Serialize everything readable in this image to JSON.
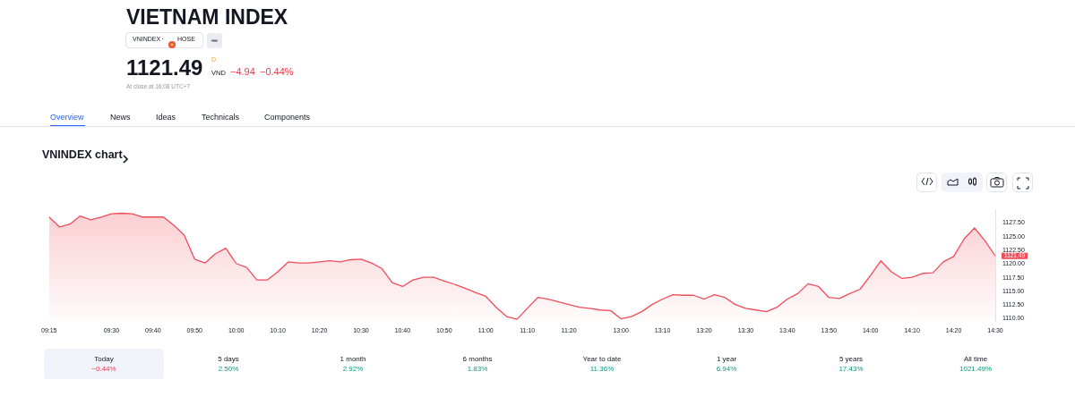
{
  "chart_data": {
    "type": "area",
    "title": "VNINDEX chart",
    "annotations": [
      "VIETNAM INDEX",
      "VNINDEX",
      "HOSE",
      "1121.49",
      "D",
      "VND",
      "−4.94",
      "−0.44%",
      "At close at 16:08 UTC+7",
      "Overview",
      "News",
      "Ideas",
      "Technicals",
      "Components",
      "Today",
      "−0.44%",
      "5 days",
      "2.50%",
      "1 month",
      "2.92%",
      "6 months",
      "1.83%",
      "Year to date",
      "11.36%",
      "1 year",
      "6.94%",
      "5 years",
      "17.43%",
      "All time",
      "1021.49%",
      "·",
      {
        "text": "1121.49",
        "x": "14:30",
        "y": 1121.49
      }
    ],
    "categories": [
      "09:15",
      null,
      null,
      null,
      null,
      null,
      "09:30",
      null,
      null,
      null,
      "09:40",
      null,
      null,
      null,
      "09:50",
      null,
      null,
      null,
      "10:00",
      null,
      null,
      null,
      "10:10",
      null,
      null,
      null,
      "10:20",
      null,
      null,
      null,
      "10:30",
      null,
      null,
      null,
      "10:40",
      null,
      null,
      null,
      "10:50",
      null,
      null,
      null,
      "11:00",
      null,
      null,
      null,
      "11:10",
      null,
      null,
      null,
      "11:20",
      null,
      null,
      null,
      null,
      "13:00",
      null,
      null,
      null,
      "13:10",
      null,
      null,
      null,
      "13:20",
      null,
      null,
      null,
      "13:30",
      null,
      null,
      null,
      "13:40",
      null,
      null,
      null,
      "13:50",
      null,
      null,
      null,
      "14:00",
      null,
      null,
      null,
      "14:10",
      null,
      null,
      null,
      "14:20",
      null,
      null,
      null,
      "14:30"
    ],
    "series": [
      {
        "color": "#f04d5a",
        "values": [
          1128.6,
          1126.8,
          1127.3,
          1128.8,
          1128.1,
          1128.6,
          1129.2,
          1129.3,
          1129.2,
          1128.6,
          1128.6,
          1128.6,
          1127.1,
          1125.3,
          1120.9,
          1120.2,
          1121.9,
          1122.9,
          1120.1,
          1119.4,
          1117.1,
          1117.1,
          1118.6,
          1120.4,
          1120.2,
          1120.2,
          1120.4,
          1120.6,
          1120.4,
          1120.8,
          1120.9,
          1120.2,
          1119.2,
          1116.6,
          1115.9,
          1117.1,
          1117.6,
          1117.6,
          1116.9,
          1116.3,
          1115.6,
          1114.8,
          1114.1,
          1112.1,
          1110.4,
          1109.9,
          1111.9,
          1113.9,
          1113.6,
          1113.1,
          1112.6,
          1112.1,
          1111.9,
          1111.6,
          1111.5,
          1110.0,
          1110.4,
          1111.3,
          1112.6,
          1113.6,
          1114.4,
          1114.3,
          1114.3,
          1113.6,
          1114.4,
          1113.9,
          1112.6,
          1111.9,
          1111.6,
          1111.3,
          1112.1,
          1113.6,
          1114.6,
          1116.4,
          1115.9,
          1113.9,
          1113.7,
          1114.6,
          1115.4,
          1117.9,
          1120.6,
          1118.6,
          1117.4,
          1117.6,
          1118.3,
          1118.4,
          1120.4,
          1121.4,
          1124.6,
          1126.6,
          1124.3,
          1121.49
        ]
      }
    ],
    "ylim": [
      1109.5,
      1130
    ],
    "yticks": [
      {
        "value": 1110,
        "label": "1110.00"
      },
      {
        "value": 1112.5,
        "label": "1112.50"
      },
      {
        "value": 1115,
        "label": "1115.00"
      },
      {
        "value": 1117.5,
        "label": "1117.50"
      },
      {
        "value": 1120,
        "label": "1120.00"
      },
      {
        "value": 1122.5,
        "label": "1122.50"
      },
      {
        "value": 1125,
        "label": "1125.00"
      },
      {
        "value": 1127.5,
        "label": "1127.50"
      }
    ],
    "marker": "none"
  }
}
